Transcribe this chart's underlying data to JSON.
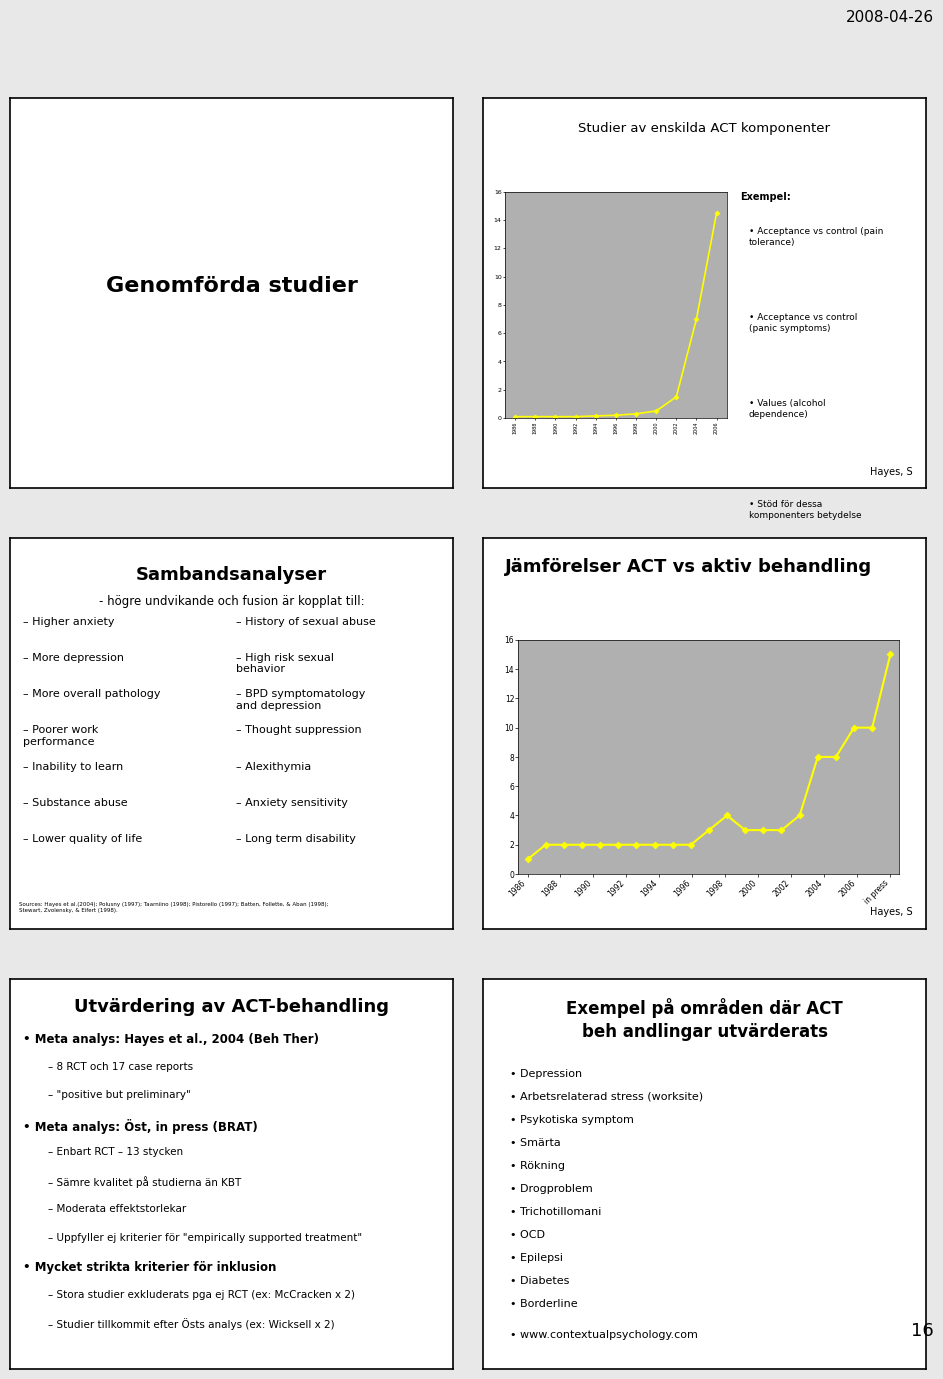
{
  "bg_color": "#e8e8e8",
  "slide_bg": "#ffffff",
  "border_color": "#000000",
  "date_text": "2008-04-26",
  "page_number": "16",
  "panel1": {
    "title": "Genomförda studier",
    "title_fontsize": 16,
    "title_bold": true
  },
  "panel2": {
    "title": "Studier av enskilda ACT komponenter",
    "title_fontsize": 10,
    "chart_years": [
      "1986",
      "1988",
      "1990",
      "1992",
      "1994",
      "1996",
      "1998",
      "2000",
      "2002",
      "2004",
      "2006"
    ],
    "chart_values": [
      0.1,
      0.1,
      0.1,
      0.1,
      0.15,
      0.2,
      0.3,
      0.5,
      1.5,
      7.0,
      14.5
    ],
    "line_color": "#ffff00",
    "marker_color": "#ffff00",
    "chart_bg": "#b0b0b0",
    "example_title": "Exempel:",
    "example_items": [
      "Acceptance vs control (pain\ntolerance)",
      "Acceptance vs control\n(panic symptoms)",
      "Values (alcohol\ndependence)"
    ],
    "stod_text": "Stöd för dessa\nkomponenters betydelse",
    "hayes_text": "Hayes, S"
  },
  "panel3": {
    "title": "Sambandsanalyser",
    "subtitle": "- högre undvikande och fusion är kopplat till:",
    "col1_items": [
      "Higher anxiety",
      "More depression",
      "More overall pathology",
      "Poorer work\nperformance",
      "Inability to learn",
      "Substance abuse",
      "Lower quality of life"
    ],
    "col2_items": [
      "History of sexual abuse",
      "High risk sexual\nbehavior",
      "BPD symptomatology\nand depression",
      "Thought suppression",
      "Alexithymia",
      "Anxiety sensitivity",
      "Long term disability"
    ],
    "sources_text": "Sources: Hayes et al.(2004); Polusny (1997); Taarniino (1998); Pistorello (1997); Batten, Follette, & Aban (1998);\nStewart, Zvolensky, & Eifert (1998)."
  },
  "panel4": {
    "title": "Jämförelser ACT vs aktiv behandling",
    "title_fontsize": 14,
    "chart_xlabels": [
      "1986",
      "1988",
      "1990",
      "1992",
      "1994",
      "1996",
      "1998",
      "2000",
      "2002",
      "2004",
      "2006",
      "in press"
    ],
    "chart_values_y": [
      1,
      2,
      2,
      2,
      2,
      2,
      2,
      2,
      2,
      2,
      3,
      4,
      3,
      3,
      3,
      4,
      8,
      8,
      10,
      10,
      15
    ],
    "line_color": "#ffff00",
    "marker_color": "#ffff00",
    "chart_bg": "#b0b0b0",
    "hayes_text": "Hayes, S"
  },
  "panel5": {
    "title": "Utvärdering av ACT-behandling",
    "title_fontsize": 13,
    "items": [
      {
        "bullet": "•",
        "text": "Meta analys: Hayes et al., 2004 (Beh Ther)",
        "bold": true,
        "indent": 0
      },
      {
        "bullet": "–",
        "text": "8 RCT och 17 case reports",
        "bold": false,
        "indent": 1
      },
      {
        "bullet": "–",
        "text": "\"positive but preliminary\"",
        "bold": false,
        "indent": 1
      },
      {
        "bullet": "•",
        "text": "Meta analys: Öst, in press (BRAT)",
        "bold": true,
        "indent": 0
      },
      {
        "bullet": "–",
        "text": "Enbart RCT – 13 stycken",
        "bold": false,
        "indent": 1
      },
      {
        "bullet": "–",
        "text": "Sämre kvalitet på studierna än KBT",
        "bold": false,
        "indent": 1
      },
      {
        "bullet": "–",
        "text": "Moderata effektstorlekar",
        "bold": false,
        "indent": 1
      },
      {
        "bullet": "–",
        "text": "Uppfyller ej kriterier för \"empirically supported treatment\"",
        "bold": false,
        "indent": 1
      },
      {
        "bullet": "•",
        "text": "Mycket strikta kriterier för inklusion",
        "bold": true,
        "indent": 0
      },
      {
        "bullet": "–",
        "text": "Stora studier exkluderats pga ej RCT (ex: McCracken x 2)",
        "bold": false,
        "indent": 1
      },
      {
        "bullet": "–",
        "text": "Studier tillkommit efter Östs analys (ex: Wicksell x 2)",
        "bold": false,
        "indent": 1
      }
    ]
  },
  "panel6": {
    "title": "Exempel på områden där ACT\nbeh andlingar utvärderats",
    "title_fontsize": 12,
    "items": [
      "Depression",
      "Arbetsrelaterad stress (worksite)",
      "Psykotiska symptom",
      "Smärta",
      "Rökning",
      "Drogproblem",
      "Trichotillomani",
      "OCD",
      "Epilepsi",
      "Diabetes",
      "Borderline"
    ],
    "url": "www.contextualpsychology.com"
  }
}
